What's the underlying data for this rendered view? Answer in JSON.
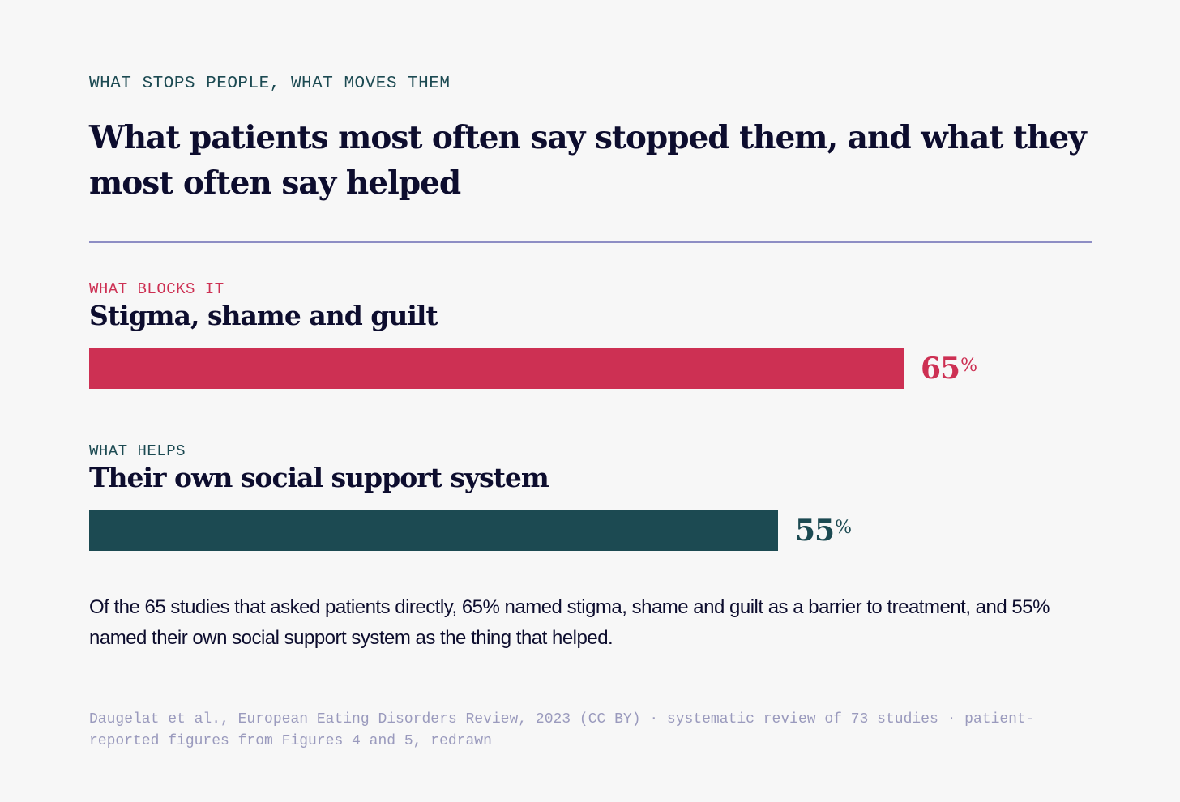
{
  "kicker": "WHAT STOPS PEOPLE, WHAT MOVES THEM",
  "title": "What patients most often say stopped them, and what they most often say helped",
  "colors": {
    "barrier": "#cd3053",
    "helps": "#1c4a52",
    "rule": "#8e8ec4",
    "background": "#f7f7f7"
  },
  "chart_data": {
    "type": "bar",
    "orientation": "horizontal",
    "xlim": [
      0,
      80
    ],
    "categories": [
      "Stigma, shame and guilt",
      "Their own social support system"
    ],
    "values": [
      65,
      55
    ],
    "unit": "%",
    "bars": [
      {
        "group_label": "WHAT BLOCKS IT",
        "label": "Stigma, shame and guilt",
        "value": 65,
        "value_label": "65",
        "color": "#cd3053"
      },
      {
        "group_label": "WHAT HELPS",
        "label": "Their own social support system",
        "value": 55,
        "value_label": "55",
        "color": "#1c4a52"
      }
    ]
  },
  "summary": "Of the 65 studies that asked patients directly, 65% named stigma, shame and guilt as a barrier to treatment, and 55% named their own social support system as the thing that helped.",
  "source": "Daugelat et al., European Eating Disorders Review, 2023 (CC BY) · systematic review of 73 studies · patient-reported figures from Figures 4 and 5, redrawn"
}
